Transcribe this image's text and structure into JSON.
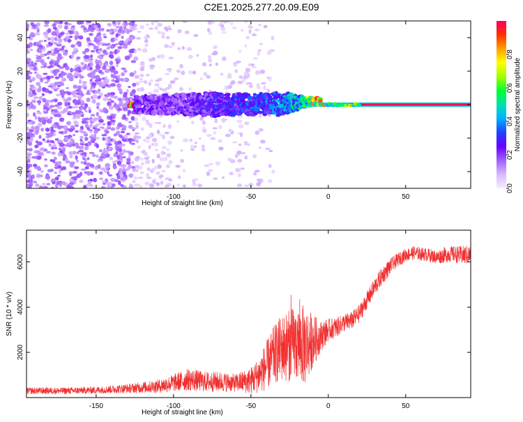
{
  "figure": {
    "title": "C2E1.2025.277.20.09.E09"
  },
  "colors": {
    "axis": "#000000",
    "snr_line": "#f03030",
    "carrier_line": "#e02060",
    "colormap": [
      "#f5f0ff",
      "#d9b8ff",
      "#a060ff",
      "#6a00ff",
      "#2040ff",
      "#00b0ff",
      "#00e0b0",
      "#00ff30",
      "#a0ff00",
      "#ffff00",
      "#ffa000",
      "#ff3000",
      "#ff0060"
    ]
  },
  "chart_data": [
    {
      "type": "heatmap",
      "xlabel": "Height of straight line (km)",
      "ylabel": "Frequency (Hz)",
      "xlim": [
        -195,
        92
      ],
      "ylim": [
        -50,
        50
      ],
      "xticks": [
        -150,
        -100,
        -50,
        0,
        50
      ],
      "yticks": [
        -40,
        -20,
        0,
        20,
        40
      ],
      "colorbar": {
        "label": "Normalized spectral amplitude",
        "range": [
          0.0,
          1.0
        ],
        "ticks": [
          "0.0",
          "0.2",
          "0.4",
          "0.6",
          "0.8"
        ]
      },
      "description_data": {
        "carrier_frequency_hz": 0,
        "strong_carrier_x_range_km": [
          -10,
          92
        ],
        "noise_x_range_km": [
          -195,
          -55
        ],
        "signal_band": [
          {
            "x": -125,
            "spread_hz": 5,
            "amplitude": 0.2
          },
          {
            "x": -100,
            "spread_hz": 6,
            "amplitude": 0.2
          },
          {
            "x": -75,
            "spread_hz": 7,
            "amplitude": 0.25
          },
          {
            "x": -50,
            "spread_hz": 6,
            "amplitude": 0.3
          },
          {
            "x": -30,
            "spread_hz": 7,
            "amplitude": 0.35
          },
          {
            "x": -15,
            "spread_hz": 3,
            "amplitude": 0.5
          },
          {
            "x": 0,
            "spread_hz": 1,
            "amplitude": 0.95
          },
          {
            "x": 50,
            "spread_hz": 1,
            "amplitude": 1.0
          },
          {
            "x": 90,
            "spread_hz": 1,
            "amplitude": 1.0
          }
        ]
      }
    },
    {
      "type": "line",
      "xlabel": "Height of straight line (km)",
      "ylabel": "SNR (10 * v/v)",
      "xlim": [
        -195,
        92
      ],
      "ylim": [
        0,
        7400
      ],
      "xticks": [
        -150,
        -100,
        -50,
        0,
        50
      ],
      "yticks": [
        2000,
        4000,
        6000
      ],
      "series": [
        {
          "x": [
            -195,
            -170,
            -150,
            -130,
            -110,
            -100,
            -90,
            -80,
            -70,
            -60,
            -50,
            -45,
            -40,
            -35,
            -30,
            -25,
            -20,
            -15,
            -10,
            -5,
            0,
            5,
            10,
            15,
            20,
            25,
            30,
            35,
            40,
            45,
            50,
            55,
            60,
            65,
            70,
            75,
            80,
            85,
            92
          ],
          "y": [
            300,
            300,
            330,
            400,
            500,
            650,
            800,
            700,
            700,
            650,
            750,
            1000,
            1400,
            1900,
            2200,
            2300,
            2400,
            2300,
            2500,
            2700,
            3000,
            3100,
            3300,
            3400,
            3700,
            4300,
            4900,
            5400,
            5800,
            6100,
            6300,
            6400,
            6350,
            6300,
            6200,
            6300,
            6350,
            6300,
            6300
          ],
          "noise": [
            150,
            150,
            160,
            200,
            300,
            400,
            500,
            450,
            450,
            400,
            600,
            800,
            1100,
            1300,
            1500,
            1600,
            1700,
            1800,
            1200,
            700,
            500,
            450,
            400,
            400,
            400,
            400,
            400,
            400,
            350,
            300,
            300,
            300,
            300,
            300,
            300,
            350,
            350,
            400,
            450
          ]
        }
      ]
    }
  ]
}
